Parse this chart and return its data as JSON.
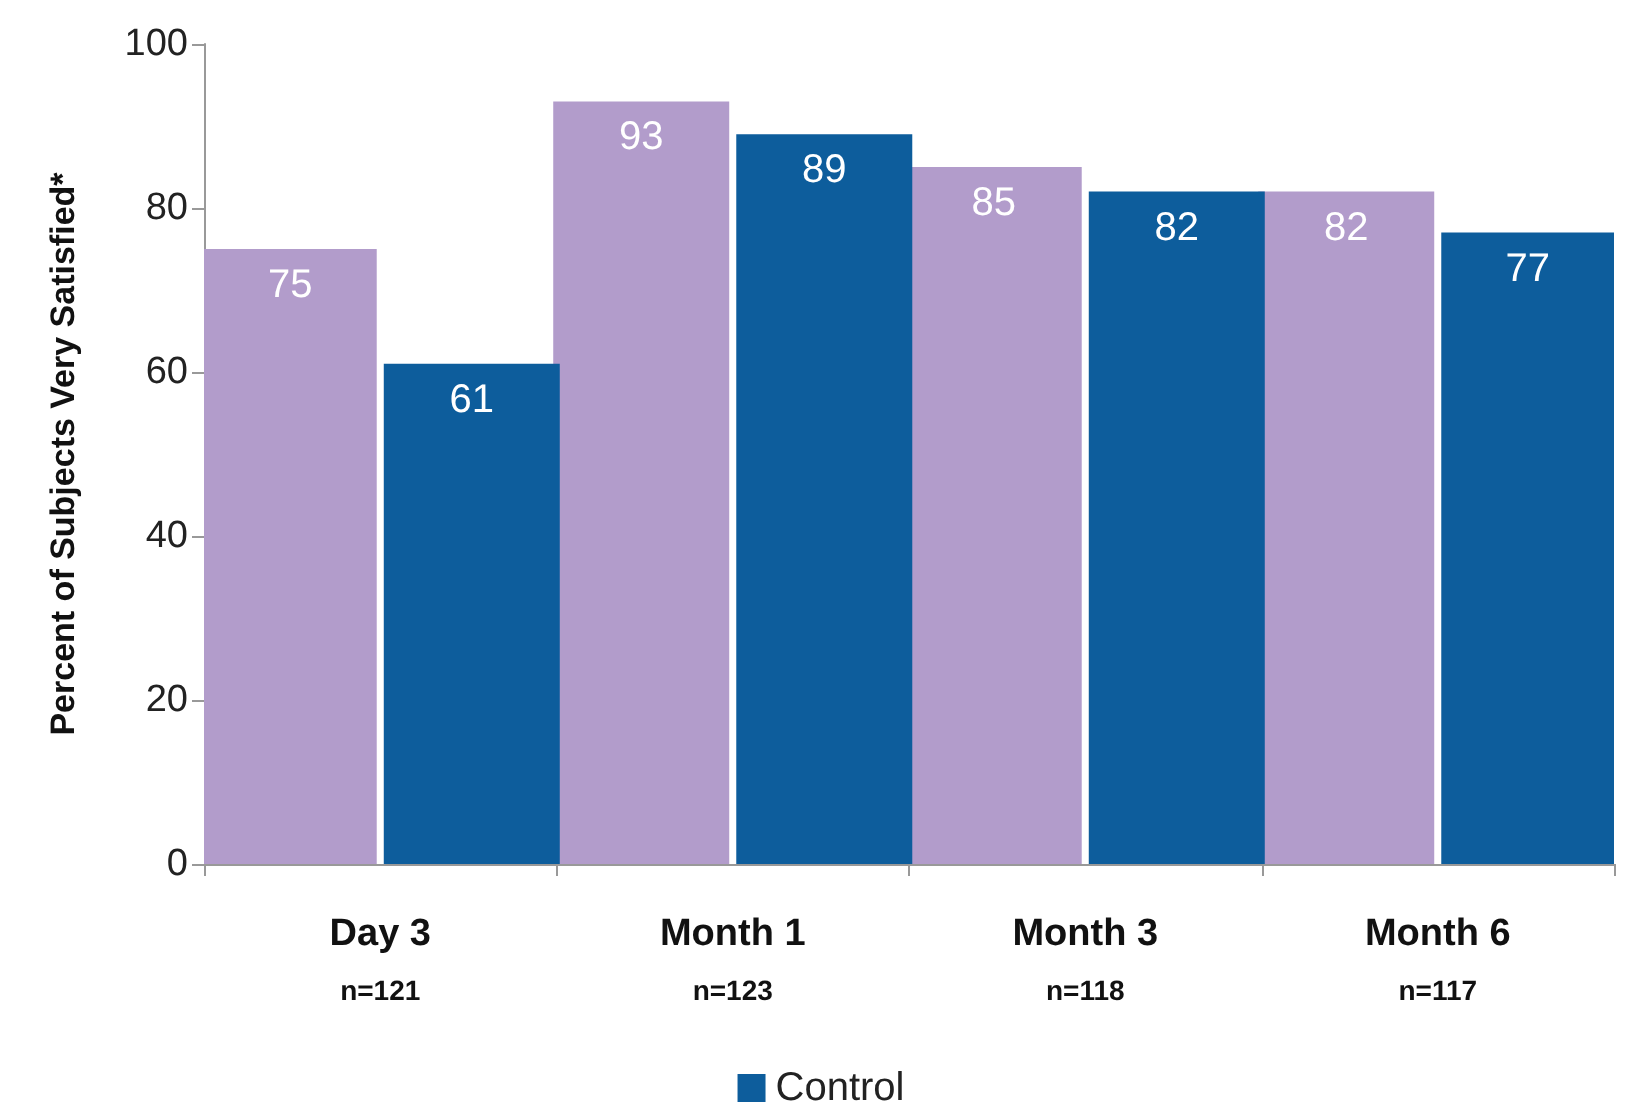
{
  "chart_data": {
    "type": "bar",
    "ylabel": "Percent of Subjects Very Satisfied*",
    "categories": [
      "Day 3\nn=121",
      "Month 1\nn=123",
      "Month 3\nn=118",
      "Month 6\nn=117"
    ],
    "series": [
      {
        "color": "#b29ccb",
        "values": [
          75,
          93,
          85,
          82
        ]
      },
      {
        "name": "Control",
        "color": "#0d5d9c",
        "values": [
          61,
          89,
          82,
          77
        ]
      }
    ],
    "ylim": [
      0,
      100
    ],
    "yticks": [
      0,
      20,
      40,
      60,
      80,
      100
    ],
    "grid": false,
    "legend": "bottom",
    "data_labels": true
  }
}
